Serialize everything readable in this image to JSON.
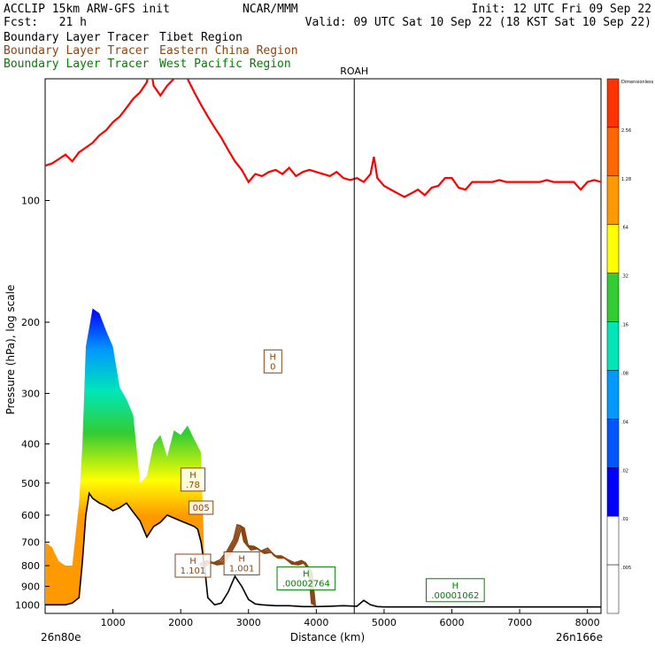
{
  "header": {
    "model": "ACCLIP 15km ARW-GFS init",
    "org": "NCAR/MMM",
    "init": "Init: 12 UTC Fri 09 Sep 22",
    "fcst": "Fcst:   21 h",
    "valid": "Valid: 09 UTC Sat 10 Sep 22 (18 KST Sat 10 Sep 22)",
    "legend": [
      {
        "name": "Boundary Layer Tracer",
        "region": "Tibet Region",
        "color": "#000000"
      },
      {
        "name": "Boundary Layer Tracer",
        "region": "Eastern China Region",
        "color": "#8B4513"
      },
      {
        "name": "Boundary Layer Tracer",
        "region": "West Pacific Region",
        "color": "#008000"
      }
    ]
  },
  "colors": {
    "tropopause": "#ff0000",
    "terrain": "#000000",
    "east_china": "#8B4513",
    "west_pacific": "#008000"
  },
  "chart_data": {
    "type": "area",
    "xlabel": "Distance (km)",
    "ylabel": "Pressure (hPa), log scale",
    "xlim": [
      0,
      8200
    ],
    "ylim": [
      1050,
      50
    ],
    "y_scale": "log",
    "x_ticks": [
      1000,
      2000,
      3000,
      4000,
      5000,
      6000,
      7000,
      8000
    ],
    "y_ticks": [
      100,
      200,
      300,
      400,
      500,
      600,
      700,
      800,
      900,
      1000
    ],
    "x_end_labels": {
      "left": "26n80e",
      "right": "26n166e"
    },
    "vertical_marker": {
      "label": "ROAH",
      "x": 4560
    },
    "colorbar": {
      "levels": [
        "Dimensionless",
        "2.56",
        "1.28",
        ".64",
        ".32",
        ".16",
        ".08",
        ".04",
        ".02",
        ".01",
        ".005"
      ],
      "colors": [
        "#ff3300",
        "#ff6600",
        "#ff9900",
        "#ffff00",
        "#33cc33",
        "#00e6b8",
        "#0099ff",
        "#0055ff",
        "#0000ff",
        "#ffffff",
        "#ffffff"
      ]
    },
    "tropopause": {
      "x": [
        0,
        100,
        200,
        300,
        400,
        500,
        600,
        700,
        800,
        900,
        1000,
        1100,
        1200,
        1300,
        1400,
        1500,
        1550,
        1600,
        1700,
        1800,
        1900,
        2000,
        2050,
        2100,
        2200,
        2300,
        2400,
        2500,
        2600,
        2700,
        2800,
        2900,
        3000,
        3100,
        3200,
        3300,
        3400,
        3500,
        3600,
        3700,
        3800,
        3900,
        4000,
        4100,
        4200,
        4300,
        4400,
        4500,
        4600,
        4700,
        4800,
        4850,
        4900,
        5000,
        5100,
        5200,
        5300,
        5400,
        5500,
        5600,
        5700,
        5800,
        5900,
        6000,
        6100,
        6200,
        6300,
        6400,
        6500,
        6600,
        6700,
        6800,
        6900,
        7000,
        7100,
        7200,
        7300,
        7400,
        7500,
        7600,
        7700,
        7800,
        7900,
        8000,
        8100,
        8200
      ],
      "y": [
        82,
        81,
        79,
        77,
        80,
        76,
        74,
        72,
        69,
        67,
        64,
        62,
        59,
        56,
        54,
        51,
        46,
        52,
        55,
        52,
        50,
        48,
        46,
        50,
        54,
        58,
        62,
        66,
        70,
        75,
        80,
        84,
        90,
        86,
        87,
        85,
        84,
        86,
        83,
        87,
        85,
        84,
        85,
        86,
        87,
        85,
        88,
        89,
        88,
        90,
        86,
        78,
        88,
        92,
        94,
        96,
        98,
        96,
        94,
        97,
        93,
        92,
        88,
        88,
        93,
        94,
        90,
        90,
        90,
        90,
        89,
        90,
        90,
        90,
        90,
        90,
        90,
        89,
        90,
        90,
        90,
        90,
        94,
        90,
        89,
        90
      ]
    },
    "terrain": {
      "x": [
        0,
        100,
        200,
        300,
        400,
        500,
        550,
        600,
        650,
        700,
        800,
        900,
        1000,
        1100,
        1200,
        1300,
        1400,
        1500,
        1600,
        1700,
        1800,
        1900,
        2000,
        2100,
        2200,
        2250,
        2300,
        2350,
        2400,
        2500,
        2600,
        2700,
        2800,
        2900,
        3000,
        3100,
        3200,
        3400,
        3600,
        3800,
        4000,
        4200,
        4400,
        4600,
        4700,
        4800,
        4900,
        5000,
        5500,
        6000,
        6500,
        7000,
        7500,
        8000,
        8200
      ],
      "y": [
        1000,
        1000,
        1000,
        1000,
        990,
        960,
        780,
        600,
        530,
        545,
        560,
        570,
        585,
        575,
        560,
        590,
        620,
        680,
        640,
        625,
        600,
        610,
        620,
        630,
        640,
        650,
        700,
        800,
        960,
        1000,
        990,
        930,
        850,
        900,
        970,
        995,
        1000,
        1005,
        1005,
        1010,
        1010,
        1008,
        1005,
        1008,
        975,
        1000,
        1010,
        1012,
        1012,
        1012,
        1012,
        1012,
        1012,
        1012,
        1012
      ]
    },
    "tracer_fill_top": {
      "x": [
        0,
        100,
        200,
        300,
        400,
        500,
        550,
        600,
        700,
        800,
        900,
        1000,
        1100,
        1200,
        1300,
        1400,
        1500,
        1600,
        1700,
        1800,
        1900,
        2000,
        2100,
        2200,
        2300,
        2350
      ],
      "y": [
        700,
        720,
        780,
        800,
        800,
        560,
        400,
        230,
        185,
        190,
        210,
        230,
        290,
        310,
        340,
        500,
        480,
        400,
        380,
        430,
        370,
        380,
        360,
        390,
        420,
        800
      ]
    },
    "east_china_ridge": {
      "x": [
        2280,
        2400,
        2500,
        2600,
        2700,
        2800,
        2850,
        2900,
        2950,
        3000,
        3100,
        3200,
        3300,
        3400,
        3500,
        3600,
        3700,
        3800,
        3900,
        3950
      ],
      "y": [
        800,
        780,
        790,
        780,
        740,
        690,
        640,
        640,
        700,
        720,
        720,
        740,
        730,
        760,
        760,
        780,
        790,
        780,
        820,
        1000
      ]
    },
    "markers": [
      {
        "label": "H",
        "value": "0",
        "x": 3360,
        "y": 250,
        "series": "east_china"
      },
      {
        "label": "H",
        "value": ".78",
        "x": 2180,
        "y": 490,
        "series": "east_china"
      },
      {
        "label": "",
        "value": "005",
        "x": 2300,
        "y": 575,
        "series": "east_china"
      },
      {
        "label": "H",
        "value": "1.101",
        "x": 2180,
        "y": 800,
        "series": "east_china"
      },
      {
        "label": "H",
        "value": "1.001",
        "x": 2900,
        "y": 790,
        "series": "east_china"
      },
      {
        "label": "H",
        "value": ".00002764",
        "x": 3850,
        "y": 860,
        "series": "west_pacific"
      },
      {
        "label": "H",
        "value": ".00001062",
        "x": 6050,
        "y": 920,
        "series": "west_pacific"
      }
    ]
  }
}
